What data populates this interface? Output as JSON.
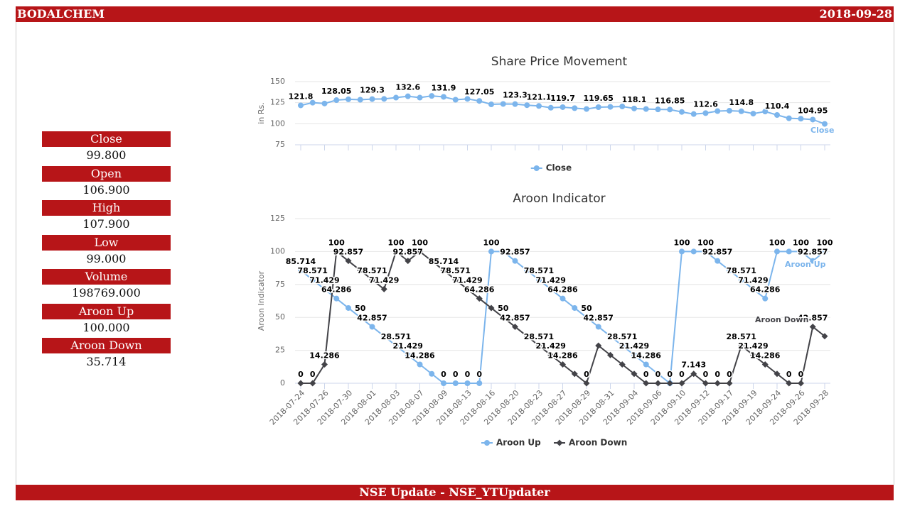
{
  "header": {
    "title": "BODALCHEM",
    "date": "2018-09-28"
  },
  "stats": [
    {
      "label": "Close",
      "value": "99.800"
    },
    {
      "label": "Open",
      "value": "106.900"
    },
    {
      "label": "High",
      "value": "107.900"
    },
    {
      "label": "Low",
      "value": "99.000"
    },
    {
      "label": "Volume",
      "value": "198769.000"
    },
    {
      "label": "Aroon Up",
      "value": "100.000"
    },
    {
      "label": "Aroon Down",
      "value": "35.714"
    }
  ],
  "footer": {
    "text": "NSE Update - NSE_YTUpdater"
  },
  "chart_data": [
    {
      "type": "line",
      "title": "Share Price Movement",
      "y_label": "in Rs.",
      "ylim": [
        75,
        150
      ],
      "yticks": [
        75,
        100,
        125,
        150
      ],
      "grid": true,
      "legend": "bottom",
      "series": [
        {
          "name": "Close",
          "color": "#7cb5ec",
          "marker": "circle",
          "values": [
            121.8,
            125,
            124,
            128.05,
            129,
            128.5,
            129.3,
            129.5,
            131,
            132.6,
            131,
            133,
            131.9,
            128.5,
            129.5,
            127.05,
            123,
            123.5,
            123.3,
            122,
            121.1,
            119,
            119.7,
            118.5,
            117.5,
            119.65,
            120,
            120.5,
            118.1,
            117.5,
            117,
            116.85,
            114,
            111.5,
            112.6,
            115,
            115.5,
            114.8,
            112,
            114.5,
            110.4,
            106.5,
            106,
            104.95,
            99.8
          ],
          "value_labels": [
            "121.8",
            null,
            null,
            "128.05",
            null,
            null,
            "129.3",
            null,
            null,
            "132.6",
            null,
            null,
            "131.9",
            null,
            null,
            "127.05",
            null,
            null,
            "123.3",
            null,
            "121.1",
            null,
            "119.7",
            null,
            null,
            "119.65",
            null,
            null,
            "118.1",
            null,
            null,
            "116.85",
            null,
            null,
            "112.6",
            null,
            null,
            "114.8",
            null,
            null,
            "110.4",
            null,
            null,
            "104.95",
            null
          ]
        }
      ]
    },
    {
      "type": "line",
      "title": "Aroon Indicator",
      "y_label": "Aroon Indicator",
      "categories": [
        "2018-07-24",
        null,
        "2018-07-26",
        null,
        "2018-07-30",
        null,
        "2018-08-01",
        null,
        "2018-08-03",
        null,
        "2018-08-07",
        null,
        "2018-08-09",
        null,
        "2018-08-13",
        null,
        "2018-08-16",
        null,
        "2018-08-20",
        null,
        "2018-08-23",
        null,
        "2018-08-27",
        null,
        "2018-08-29",
        null,
        "2018-08-31",
        null,
        "2018-09-04",
        null,
        "2018-09-06",
        null,
        "2018-09-10",
        null,
        "2018-09-12",
        null,
        "2018-09-17",
        null,
        "2018-09-19",
        null,
        "2018-09-24",
        null,
        "2018-09-26",
        null,
        "2018-09-28"
      ],
      "ylim": [
        0,
        125
      ],
      "yticks": [
        0,
        25,
        50,
        75,
        100,
        125
      ],
      "grid": true,
      "legend": "bottom",
      "series": [
        {
          "name": "Aroon Up",
          "color": "#7cb5ec",
          "marker": "circle",
          "values": [
            85.714,
            78.571,
            71.429,
            64.286,
            57.143,
            50,
            42.857,
            35.714,
            28.571,
            21.429,
            14.286,
            7.143,
            0,
            0,
            0,
            0,
            100,
            100,
            92.857,
            85.714,
            78.571,
            71.429,
            64.286,
            57.143,
            50,
            42.857,
            35.714,
            28.571,
            21.429,
            14.286,
            7.143,
            0,
            100,
            100,
            100,
            92.857,
            85.714,
            78.571,
            71.429,
            64.286,
            100,
            100,
            100,
            92.857,
            100
          ],
          "value_labels": [
            "85.714",
            "78.571",
            "71.429",
            "64.286",
            null,
            "50",
            "42.857",
            null,
            "28.571",
            "21.429",
            "14.286",
            null,
            "0",
            "0",
            "0",
            "0",
            "100",
            null,
            "92.857",
            null,
            "78.571",
            "71.429",
            "64.286",
            null,
            "50",
            "42.857",
            null,
            "28.571",
            "21.429",
            "14.286",
            null,
            null,
            "100",
            null,
            "100",
            "92.857",
            null,
            "78.571",
            "71.429",
            "64.286",
            "100",
            null,
            "100",
            "92.857",
            "100"
          ]
        },
        {
          "name": "Aroon Down",
          "color": "#434348",
          "marker": "diamond",
          "values": [
            0,
            0,
            14.286,
            100,
            92.857,
            85.714,
            78.571,
            71.429,
            100,
            92.857,
            100,
            92.857,
            85.714,
            78.571,
            71.429,
            64.286,
            57.143,
            50,
            42.857,
            35.714,
            28.571,
            21.429,
            14.286,
            7.143,
            0,
            28.571,
            21.429,
            14.286,
            7.143,
            0,
            0,
            0,
            0,
            7.143,
            0,
            0,
            0,
            28.571,
            21.429,
            14.286,
            7.143,
            0,
            0,
            42.857,
            35.714
          ],
          "value_labels": [
            "0",
            "0",
            "14.286",
            "100",
            "92.857",
            null,
            "78.571",
            "71.429",
            "100",
            "92.857",
            "100",
            null,
            "85.714",
            "78.571",
            "71.429",
            "64.286",
            null,
            "50",
            "42.857",
            null,
            "28.571",
            "21.429",
            "14.286",
            null,
            "0",
            null,
            null,
            null,
            null,
            "0",
            "0",
            "0",
            "0",
            "7.143",
            "0",
            "0",
            "0",
            "28.571",
            "21.429",
            "14.286",
            null,
            "0",
            "0",
            "42.857",
            null
          ]
        }
      ]
    }
  ]
}
